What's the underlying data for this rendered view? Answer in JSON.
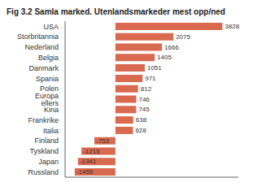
{
  "chart_data": {
    "type": "bar",
    "orientation": "horizontal",
    "title": "Fig 3.2 Samla marked. Utenlandsmarkeder mest opp/ned",
    "categories": [
      "USA",
      "Storbritannia",
      "Nederland",
      "Belgia",
      "Danmark",
      "Spania",
      "Polen",
      "Europa ellers",
      "Kina",
      "Frankrike",
      "Italia",
      "Finland",
      "Tyskland",
      "Japan",
      "Russland"
    ],
    "values": [
      3828,
      2075,
      1666,
      1405,
      1051,
      971,
      812,
      746,
      745,
      638,
      628,
      -753,
      -1215,
      -1341,
      -1455
    ],
    "color": "#d9694f",
    "xlim": [
      -1800,
      4400
    ],
    "data_labels": true,
    "tick_labels": "y"
  }
}
